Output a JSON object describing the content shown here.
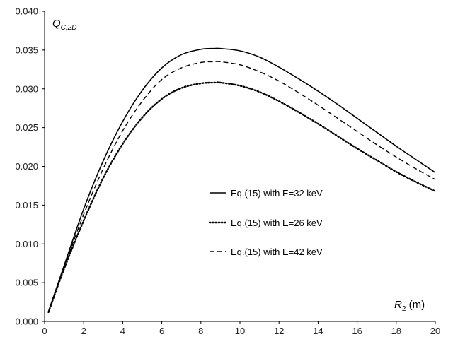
{
  "chart_data": {
    "type": "line",
    "xlabel": {
      "main": "R",
      "sub": "2",
      "unit": " (m)"
    },
    "ylabel": {
      "main": "Q",
      "sub": "C,2D"
    },
    "xlim": [
      0,
      20
    ],
    "ylim": [
      0,
      0.04
    ],
    "xticks": [
      "0",
      "2",
      "4",
      "6",
      "8",
      "10",
      "12",
      "14",
      "16",
      "18",
      "20"
    ],
    "yticks": [
      "0.000",
      "0.005",
      "0.010",
      "0.015",
      "0.020",
      "0.025",
      "0.030",
      "0.035",
      "0.040"
    ],
    "grid": false,
    "legend_position": "center-right",
    "x": [
      0.2,
      1,
      2,
      3,
      4,
      5,
      6,
      7,
      8,
      8.7,
      9,
      10,
      11,
      12,
      13,
      14,
      15,
      16,
      17,
      18,
      19,
      20
    ],
    "series": [
      {
        "name": "Eq.(15) with E=32 keV",
        "style": "solid",
        "values": [
          0.0013,
          0.0072,
          0.0145,
          0.0207,
          0.0258,
          0.0298,
          0.0327,
          0.0344,
          0.0351,
          0.0352,
          0.0352,
          0.0349,
          0.0341,
          0.0328,
          0.0313,
          0.0297,
          0.028,
          0.0262,
          0.0244,
          0.0226,
          0.0209,
          0.0192
        ]
      },
      {
        "name": "Eq.(15) with E=26 keV",
        "style": "dotted",
        "values": [
          0.0012,
          0.0068,
          0.013,
          0.0185,
          0.0229,
          0.0263,
          0.0287,
          0.0301,
          0.0307,
          0.0308,
          0.0308,
          0.0304,
          0.0296,
          0.0284,
          0.027,
          0.0255,
          0.0239,
          0.0223,
          0.0208,
          0.0193,
          0.018,
          0.0168
        ]
      },
      {
        "name": "Eq.(15) with E=42 keV",
        "style": "dashed",
        "values": [
          0.0012,
          0.007,
          0.0138,
          0.0197,
          0.0246,
          0.0284,
          0.0312,
          0.0327,
          0.0334,
          0.0335,
          0.0335,
          0.0331,
          0.0322,
          0.031,
          0.0295,
          0.0279,
          0.0262,
          0.0245,
          0.0228,
          0.0212,
          0.0197,
          0.0183
        ]
      }
    ]
  }
}
